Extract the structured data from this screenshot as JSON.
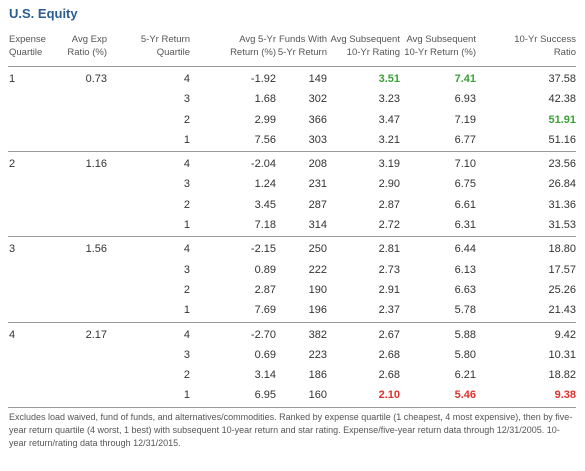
{
  "title": "U.S. Equity",
  "headers": [
    [
      "Expense",
      "Quartile"
    ],
    [
      "Avg Exp",
      "Ratio (%)"
    ],
    [
      "5-Yr Return",
      "Quartile"
    ],
    [
      "Avg 5-Yr",
      "Return (%)"
    ],
    [
      "Funds With",
      "5-Yr Return"
    ],
    [
      "Avg Subsequent",
      "10-Yr Rating"
    ],
    [
      "Avg Subsequent",
      "10-Yr Return (%)"
    ],
    [
      "10-Yr Success",
      "Ratio"
    ]
  ],
  "colors": {
    "title": "#2a5d92",
    "green": "#3aa335",
    "red": "#e0312b"
  },
  "groups": [
    {
      "quartile": "1",
      "exp_ratio": "0.73",
      "rows": [
        {
          "q": "4",
          "ret5": "-1.92",
          "funds": "149",
          "rating": "3.51",
          "ret10": "7.41",
          "success": "37.58"
        },
        {
          "q": "3",
          "ret5": "1.68",
          "funds": "302",
          "rating": "3.23",
          "ret10": "6.93",
          "success": "42.38"
        },
        {
          "q": "2",
          "ret5": "2.99",
          "funds": "366",
          "rating": "3.47",
          "ret10": "7.19",
          "success": "51.91"
        },
        {
          "q": "1",
          "ret5": "7.56",
          "funds": "303",
          "rating": "3.21",
          "ret10": "6.77",
          "success": "51.16"
        }
      ]
    },
    {
      "quartile": "2",
      "exp_ratio": "1.16",
      "rows": [
        {
          "q": "4",
          "ret5": "-2.04",
          "funds": "208",
          "rating": "3.19",
          "ret10": "7.10",
          "success": "23.56"
        },
        {
          "q": "3",
          "ret5": "1.24",
          "funds": "231",
          "rating": "2.90",
          "ret10": "6.75",
          "success": "26.84"
        },
        {
          "q": "2",
          "ret5": "3.45",
          "funds": "287",
          "rating": "2.87",
          "ret10": "6.61",
          "success": "31.36"
        },
        {
          "q": "1",
          "ret5": "7.18",
          "funds": "314",
          "rating": "2.72",
          "ret10": "6.31",
          "success": "31.53"
        }
      ]
    },
    {
      "quartile": "3",
      "exp_ratio": "1.56",
      "rows": [
        {
          "q": "4",
          "ret5": "-2.15",
          "funds": "250",
          "rating": "2.81",
          "ret10": "6.44",
          "success": "18.80"
        },
        {
          "q": "3",
          "ret5": "0.89",
          "funds": "222",
          "rating": "2.73",
          "ret10": "6.13",
          "success": "17.57"
        },
        {
          "q": "2",
          "ret5": "2.87",
          "funds": "190",
          "rating": "2.91",
          "ret10": "6.63",
          "success": "25.26"
        },
        {
          "q": "1",
          "ret5": "7.69",
          "funds": "196",
          "rating": "2.37",
          "ret10": "5.78",
          "success": "21.43"
        }
      ]
    },
    {
      "quartile": "4",
      "exp_ratio": "2.17",
      "rows": [
        {
          "q": "4",
          "ret5": "-2.70",
          "funds": "382",
          "rating": "2.67",
          "ret10": "5.88",
          "success": "9.42"
        },
        {
          "q": "3",
          "ret5": "0.69",
          "funds": "223",
          "rating": "2.68",
          "ret10": "5.80",
          "success": "10.31"
        },
        {
          "q": "2",
          "ret5": "3.14",
          "funds": "186",
          "rating": "2.68",
          "ret10": "6.21",
          "success": "18.82"
        },
        {
          "q": "1",
          "ret5": "6.95",
          "funds": "160",
          "rating": "2.10",
          "ret10": "5.46",
          "success": "9.38"
        }
      ]
    }
  ],
  "highlights": [
    {
      "group": 0,
      "row": 0,
      "field": "rating",
      "color": "green"
    },
    {
      "group": 0,
      "row": 0,
      "field": "ret10",
      "color": "green"
    },
    {
      "group": 0,
      "row": 2,
      "field": "success",
      "color": "green"
    },
    {
      "group": 3,
      "row": 3,
      "field": "rating",
      "color": "red"
    },
    {
      "group": 3,
      "row": 3,
      "field": "ret10",
      "color": "red"
    },
    {
      "group": 3,
      "row": 3,
      "field": "success",
      "color": "red"
    }
  ],
  "footnote": "Excludes load waived, fund of funds, and alternatives/commodities. Ranked by expense quartile (1 cheapest, 4 most expensive), then by five-year return quartile (4 worst, 1 best) with subsequent 10-year return and star rating. Expense/five-year return data through 12/31/2005. 10-year return/rating data through 12/31/2015."
}
